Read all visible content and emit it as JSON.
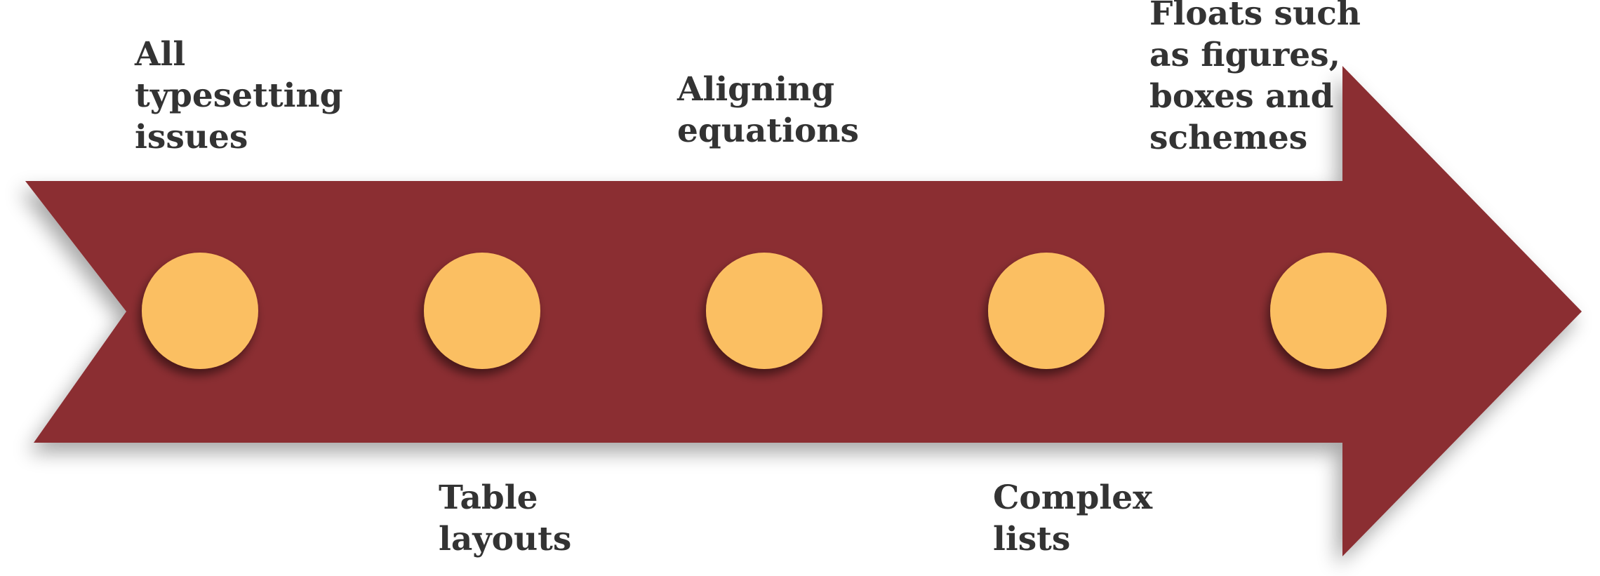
{
  "colors": {
    "arrow": "#8b2e32",
    "node": "#fbbf62",
    "text": "#333333"
  },
  "nodes": [
    {
      "label": "All\ntypesetting\nissues"
    },
    {
      "label": "Table\nlayouts"
    },
    {
      "label": "Aligning\nequations"
    },
    {
      "label": "Complex\nlists"
    },
    {
      "label": "Floats such\nas figures,\nboxes and\nschemes"
    }
  ]
}
